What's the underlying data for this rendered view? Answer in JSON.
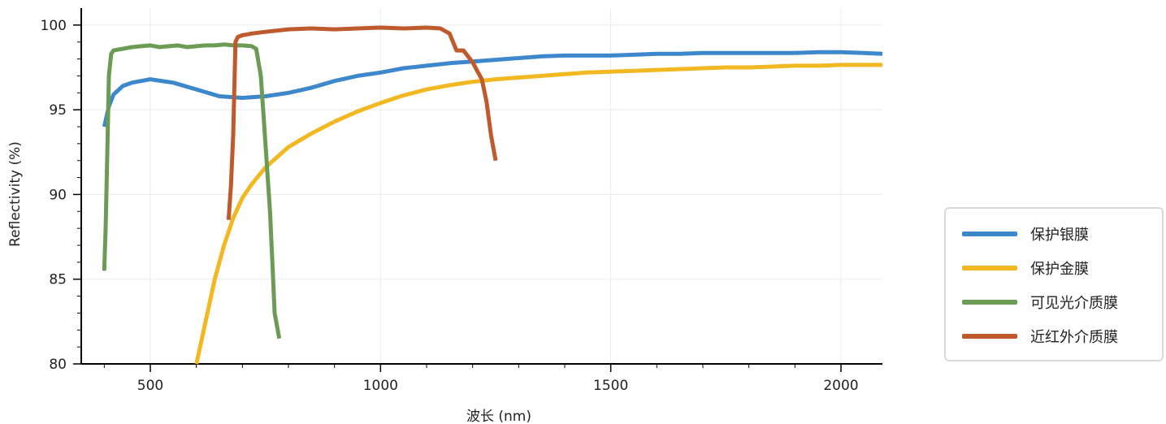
{
  "chart_data": {
    "type": "line",
    "xlabel": "波长 (nm)",
    "ylabel": "Reflectivity (%)",
    "xlim": [
      350,
      2090
    ],
    "ylim": [
      80,
      101
    ],
    "xticks": [
      500,
      1000,
      1500,
      2000
    ],
    "yticks": [
      80,
      85,
      90,
      95,
      100
    ],
    "grid": true,
    "legend_position": "right",
    "series": [
      {
        "name": "保护银膜",
        "color": "#3d87cc",
        "x": [
          400,
          410,
          420,
          440,
          460,
          500,
          550,
          600,
          650,
          700,
          750,
          800,
          850,
          900,
          950,
          1000,
          1050,
          1100,
          1150,
          1200,
          1250,
          1300,
          1350,
          1400,
          1450,
          1500,
          1550,
          1600,
          1650,
          1700,
          1750,
          1800,
          1850,
          1900,
          1950,
          2000,
          2050,
          2090
        ],
        "y": [
          94.0,
          95.2,
          95.9,
          96.4,
          96.6,
          96.8,
          96.6,
          96.2,
          95.8,
          95.7,
          95.8,
          96.0,
          96.3,
          96.7,
          97.0,
          97.2,
          97.45,
          97.6,
          97.75,
          97.85,
          97.95,
          98.05,
          98.15,
          98.2,
          98.2,
          98.2,
          98.25,
          98.3,
          98.3,
          98.35,
          98.35,
          98.35,
          98.35,
          98.35,
          98.4,
          98.4,
          98.35,
          98.3
        ]
      },
      {
        "name": "保护金膜",
        "color": "#f2b822",
        "x": [
          600,
          620,
          640,
          660,
          680,
          700,
          720,
          750,
          800,
          850,
          900,
          950,
          1000,
          1050,
          1100,
          1150,
          1200,
          1250,
          1300,
          1350,
          1400,
          1450,
          1500,
          1550,
          1600,
          1650,
          1700,
          1750,
          1800,
          1850,
          1900,
          1950,
          2000,
          2050,
          2090
        ],
        "y": [
          80.0,
          82.5,
          85.0,
          87.0,
          88.6,
          89.8,
          90.6,
          91.6,
          92.8,
          93.6,
          94.3,
          94.9,
          95.4,
          95.85,
          96.2,
          96.45,
          96.65,
          96.8,
          96.9,
          97.0,
          97.1,
          97.2,
          97.25,
          97.3,
          97.35,
          97.4,
          97.45,
          97.5,
          97.5,
          97.55,
          97.6,
          97.6,
          97.65,
          97.65,
          97.65
        ]
      },
      {
        "name": "可见光介质膜",
        "color": "#6c9b56",
        "x": [
          400,
          403,
          407,
          410,
          415,
          420,
          440,
          460,
          480,
          500,
          520,
          540,
          560,
          580,
          600,
          620,
          640,
          660,
          680,
          700,
          720,
          730,
          740,
          750,
          760,
          765,
          770,
          780
        ],
        "y": [
          85.5,
          88.0,
          93.0,
          97.0,
          98.3,
          98.5,
          98.6,
          98.7,
          98.75,
          98.8,
          98.7,
          98.75,
          98.8,
          98.7,
          98.75,
          98.8,
          98.8,
          98.85,
          98.8,
          98.8,
          98.75,
          98.6,
          97.0,
          93.0,
          89.0,
          86.0,
          83.0,
          81.5
        ]
      },
      {
        "name": "近红外介质膜",
        "color": "#bf5a2c",
        "x": [
          670,
          675,
          680,
          685,
          690,
          700,
          720,
          750,
          800,
          850,
          900,
          950,
          1000,
          1050,
          1100,
          1130,
          1150,
          1165,
          1180,
          1200,
          1210,
          1220,
          1230,
          1240,
          1250
        ],
        "y": [
          88.5,
          90.5,
          93.5,
          99.0,
          99.3,
          99.4,
          99.5,
          99.6,
          99.75,
          99.8,
          99.75,
          99.8,
          99.85,
          99.8,
          99.85,
          99.8,
          99.5,
          98.5,
          98.5,
          97.8,
          97.3,
          96.8,
          95.5,
          93.5,
          92.0
        ]
      }
    ]
  }
}
